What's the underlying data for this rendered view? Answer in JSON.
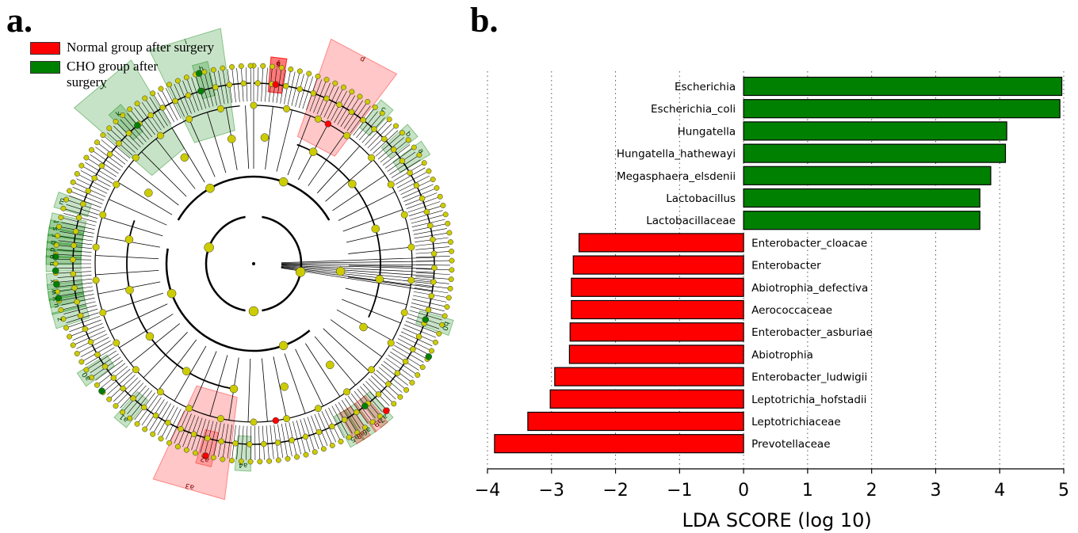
{
  "panels": {
    "a_label": "a.",
    "b_label": "b."
  },
  "legend": {
    "items": [
      {
        "label": "Normal group after surgery",
        "color": "#ff0000"
      },
      {
        "label": "CHO group after surgery",
        "color": "#008000"
      }
    ]
  },
  "cladogram": {
    "highlight_labels": [
      {
        "text": "g",
        "group": "normal"
      },
      {
        "text": "f",
        "group": "normal"
      },
      {
        "text": "e",
        "group": "normal"
      },
      {
        "text": "d",
        "group": "normal"
      },
      {
        "text": "i",
        "group": "cho"
      },
      {
        "text": "h",
        "group": "cho"
      },
      {
        "text": "l",
        "group": "cho"
      },
      {
        "text": "k",
        "group": "cho"
      },
      {
        "text": "c",
        "group": "cho"
      },
      {
        "text": "b",
        "group": "cho"
      },
      {
        "text": "a",
        "group": "cho"
      },
      {
        "text": "m",
        "group": "cho"
      },
      {
        "text": "t",
        "group": "cho"
      },
      {
        "text": "s",
        "group": "cho"
      },
      {
        "text": "r",
        "group": "cho"
      },
      {
        "text": "q",
        "group": "cho"
      },
      {
        "text": "p",
        "group": "cho"
      },
      {
        "text": "o",
        "group": "cho"
      },
      {
        "text": "n",
        "group": "cho"
      },
      {
        "text": "x",
        "group": "cho"
      },
      {
        "text": "w",
        "group": "cho"
      },
      {
        "text": "v",
        "group": "cho"
      },
      {
        "text": "u",
        "group": "cho"
      },
      {
        "text": "z",
        "group": "cho"
      },
      {
        "text": "a0",
        "group": "cho"
      },
      {
        "text": "a1",
        "group": "cho"
      },
      {
        "text": "a2",
        "group": "normal"
      },
      {
        "text": "a3",
        "group": "normal"
      },
      {
        "text": "a4",
        "group": "cho"
      },
      {
        "text": "a5",
        "group": "cho"
      },
      {
        "text": "a6",
        "group": "cho"
      },
      {
        "text": "a7",
        "group": "cho"
      },
      {
        "text": "a8",
        "group": "normal"
      },
      {
        "text": "a9",
        "group": "normal"
      },
      {
        "text": "b0",
        "group": "cho"
      }
    ]
  },
  "colors": {
    "normal": "#ff0000",
    "cho": "#008000",
    "node": "#cccc00"
  },
  "chart_data": {
    "type": "bar",
    "orientation": "horizontal",
    "xlabel": "LDA SCORE (log 10)",
    "xlim": [
      -4,
      5
    ],
    "xticks": [
      -4,
      -3,
      -2,
      -1,
      0,
      1,
      2,
      3,
      4,
      5
    ],
    "xtick_labels": [
      "−4",
      "−3",
      "−2",
      "−1",
      "0",
      "1",
      "2",
      "3",
      "4",
      "5"
    ],
    "grid": "vertical dotted",
    "categories": [
      "Escherichia",
      "Escherichia_coli",
      "Hungatella",
      "Hungatella_hathewayi",
      "Megasphaera_elsdenii",
      "Lactobacillus",
      "Lactobacillaceae",
      "Enterobacter_cloacae",
      "Enterobacter",
      "Abiotrophia_defectiva",
      "Aerococcaceae",
      "Enterobacter_asburiae",
      "Abiotrophia",
      "Enterobacter_ludwigii",
      "Leptotrichia_hofstadii",
      "Leptotrichiaceae",
      "Prevotellaceae"
    ],
    "values": [
      4.97,
      4.94,
      4.11,
      4.09,
      3.86,
      3.69,
      3.69,
      -2.57,
      -2.66,
      -2.69,
      -2.69,
      -2.71,
      -2.72,
      -2.95,
      -3.02,
      -3.37,
      -3.89
    ],
    "groups": [
      "cho",
      "cho",
      "cho",
      "cho",
      "cho",
      "cho",
      "cho",
      "normal",
      "normal",
      "normal",
      "normal",
      "normal",
      "normal",
      "normal",
      "normal",
      "normal",
      "normal"
    ]
  }
}
